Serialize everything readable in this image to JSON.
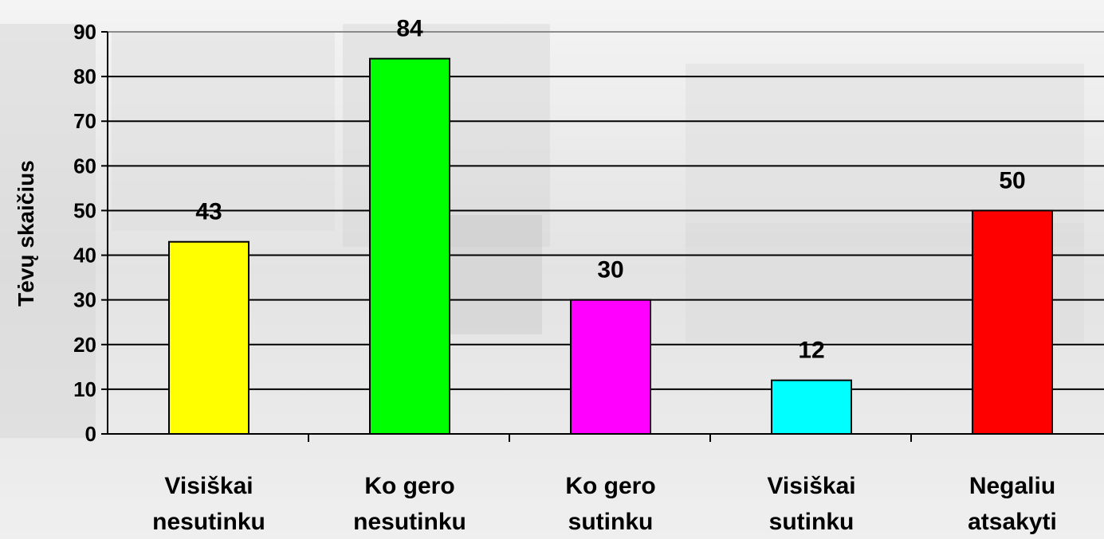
{
  "chart_data": {
    "type": "bar",
    "title": "",
    "xlabel": "",
    "ylabel": "Tėvų skaičius",
    "ylim": [
      0,
      90
    ],
    "yticks": [
      0,
      10,
      20,
      30,
      40,
      50,
      60,
      70,
      80,
      90
    ],
    "grid": true,
    "legend": "none",
    "categories": [
      [
        "Visiškai",
        "nesutinku"
      ],
      [
        "Ko gero",
        "nesutinku"
      ],
      [
        "Ko gero",
        "sutinku"
      ],
      [
        "Visiškai",
        "sutinku"
      ],
      [
        "Negaliu",
        "atsakyti"
      ]
    ],
    "values": [
      43,
      84,
      30,
      12,
      50
    ],
    "colors": [
      "#ffff00",
      "#00ff00",
      "#ff00ff",
      "#00ffff",
      "#ff0000"
    ]
  }
}
